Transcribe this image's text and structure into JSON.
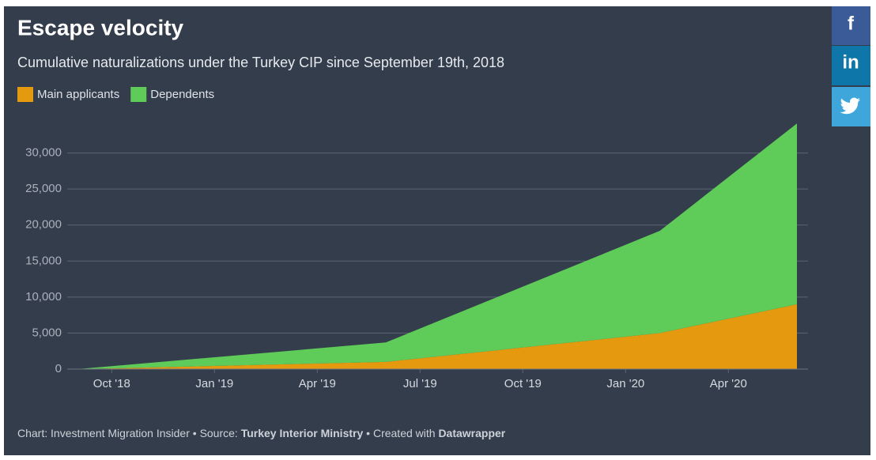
{
  "chart_data": {
    "type": "area",
    "stacked": true,
    "title": "Escape velocity",
    "subtitle": "Cumulative naturalizations under the Turkey CIP since September 19th, 2018",
    "x": [
      "2018-09",
      "2019-06",
      "2020-02",
      "2020-06"
    ],
    "series": [
      {
        "name": "Main applicants",
        "color": "#e5990f",
        "values": [
          0,
          1000,
          5000,
          9000
        ]
      },
      {
        "name": "Dependents",
        "color": "#5fcb59",
        "values": [
          0,
          2700,
          14200,
          25100
        ]
      }
    ],
    "xlim": [
      "2018-09",
      "2020-06"
    ],
    "xticks": [
      {
        "value": "2018-10",
        "label": "Oct '18"
      },
      {
        "value": "2019-01",
        "label": "Jan '19"
      },
      {
        "value": "2019-04",
        "label": "Apr '19"
      },
      {
        "value": "2019-07",
        "label": "Jul '19"
      },
      {
        "value": "2019-10",
        "label": "Oct '19"
      },
      {
        "value": "2020-01",
        "label": "Jan '20"
      },
      {
        "value": "2020-04",
        "label": "Apr '20"
      }
    ],
    "ylim": [
      0,
      35000
    ],
    "yticks": [
      0,
      {
        "value": 5000,
        "label": "5,000"
      },
      {
        "value": 10000,
        "label": "10,000"
      },
      {
        "value": 15000,
        "label": "15,000"
      },
      {
        "value": 20000,
        "label": "20,000"
      },
      {
        "value": 25000,
        "label": "25,000"
      },
      {
        "value": 30000,
        "label": "30,000"
      }
    ],
    "grid": true,
    "legend": "top-left",
    "footer": {
      "chart_label": "Chart: Investment Migration Insider",
      "separator": "•",
      "source_label": "Source:",
      "source": "Turkey Interior Ministry",
      "created_label": "Created with",
      "tool": "Datawrapper"
    }
  },
  "share_buttons": [
    "f",
    "in"
  ]
}
